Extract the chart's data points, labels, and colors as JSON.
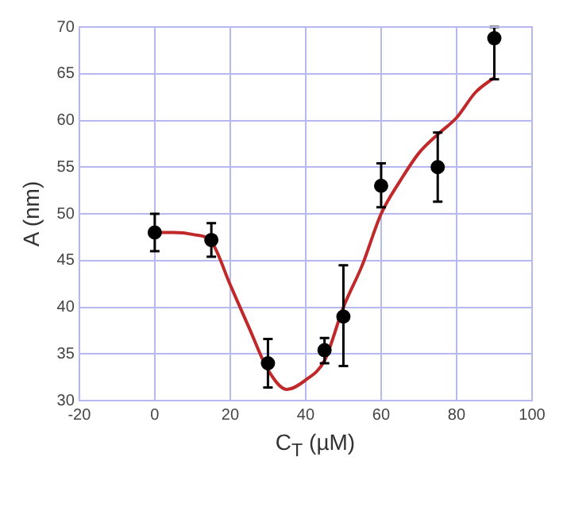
{
  "chart_data": {
    "type": "scatter",
    "xlabel": "C$_{T}$  (µM)",
    "ylabel": "A (nm)",
    "xlim": [
      -20,
      100
    ],
    "xticks": [
      -20,
      0,
      20,
      40,
      60,
      80,
      100
    ],
    "ylim": [
      30,
      70
    ],
    "yticks": [
      30,
      35,
      40,
      45,
      50,
      55,
      60,
      65,
      70
    ],
    "grid": true,
    "legend": false,
    "marker": "circle",
    "series": [
      {
        "color": "#000000",
        "x": [
          0,
          15,
          30,
          45,
          50,
          60,
          75,
          90
        ],
        "values": [
          48,
          47.2,
          34,
          35.4,
          39,
          53,
          55,
          68.8
        ],
        "errors": [
          [
            46,
            50
          ],
          [
            45.4,
            49
          ],
          [
            31.4,
            36.6
          ],
          [
            34,
            36.7
          ],
          [
            33.7,
            44.5
          ],
          [
            50.7,
            55.4
          ],
          [
            51.3,
            58.7
          ],
          [
            64.4,
            70
          ]
        ]
      },
      {
        "type": "line",
        "color": "#c0282a",
        "marker": "none",
        "x": [
          0,
          5,
          10,
          15,
          20,
          25,
          30,
          35,
          40,
          45,
          50,
          55,
          60,
          65,
          70,
          75,
          80,
          85,
          90
        ],
        "values": [
          48,
          48,
          47.8,
          47,
          42.4,
          37.8,
          33.3,
          31.2,
          32.2,
          34.3,
          40,
          44.5,
          50,
          53.5,
          56.5,
          58.5,
          60.3,
          63,
          64.6
        ]
      }
    ]
  }
}
